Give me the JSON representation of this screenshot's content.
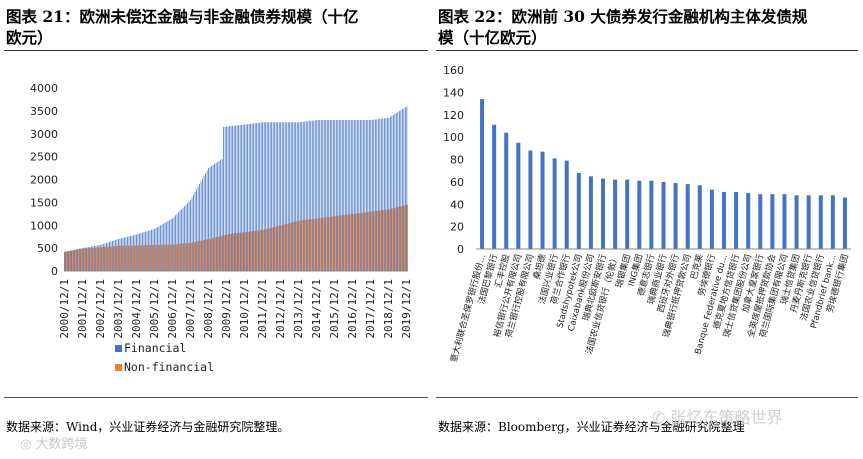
{
  "chart_data": [
    {
      "type": "bar",
      "title": "图表21：欧洲未偿还金融与非金融债券规模（十亿欧元）",
      "subtitle": "",
      "xlabel": "",
      "ylabel": "",
      "ylim": [
        0,
        4000
      ],
      "yticks": [
        "0",
        "500",
        "1000",
        "1500",
        "2000",
        "2500",
        "3000",
        "3500",
        "4000"
      ],
      "xticks": [
        "2000/12/1",
        "2001/12/1",
        "2002/12/1",
        "2003/12/1",
        "2004/12/1",
        "2005/12/1",
        "2006/12/1",
        "2007/12/1",
        "2008/12/1",
        "2009/12/1",
        "2010/12/1",
        "2011/12/1",
        "2012/12/1",
        "2013/12/1",
        "2014/12/1",
        "2015/12/1",
        "2016/12/1",
        "2017/12/1",
        "2018/12/1",
        "2019/12/1"
      ],
      "x_start": "2000-12",
      "frequency": "monthly",
      "stacked": false,
      "grid": false,
      "legend": "bottom",
      "series": [
        {
          "name": "Financial",
          "color": "#4472c4",
          "anchors": [
            [
              "2000-12",
              420
            ],
            [
              "2001-12",
              500
            ],
            [
              "2002-12",
              570
            ],
            [
              "2003-12",
              700
            ],
            [
              "2004-12",
              800
            ],
            [
              "2005-12",
              920
            ],
            [
              "2006-12",
              1150
            ],
            [
              "2007-12",
              1550
            ],
            [
              "2008-06",
              1900
            ],
            [
              "2008-12",
              2250
            ],
            [
              "2009-09",
              2450
            ],
            [
              "2009-10",
              3150
            ],
            [
              "2010-12",
              3200
            ],
            [
              "2011-12",
              3250
            ],
            [
              "2012-12",
              3250
            ],
            [
              "2013-12",
              3250
            ],
            [
              "2014-12",
              3300
            ],
            [
              "2015-12",
              3300
            ],
            [
              "2016-12",
              3300
            ],
            [
              "2017-12",
              3300
            ],
            [
              "2018-12",
              3350
            ],
            [
              "2019-12",
              3600
            ]
          ]
        },
        {
          "name": "Non-financial",
          "color": "#ed7d31",
          "anchors": [
            [
              "2000-12",
              420
            ],
            [
              "2001-12",
              490
            ],
            [
              "2002-12",
              520
            ],
            [
              "2003-12",
              550
            ],
            [
              "2004-12",
              560
            ],
            [
              "2005-12",
              570
            ],
            [
              "2006-12",
              580
            ],
            [
              "2007-12",
              620
            ],
            [
              "2008-12",
              700
            ],
            [
              "2009-12",
              800
            ],
            [
              "2010-12",
              850
            ],
            [
              "2011-12",
              900
            ],
            [
              "2012-12",
              1000
            ],
            [
              "2013-12",
              1100
            ],
            [
              "2014-12",
              1150
            ],
            [
              "2015-12",
              1200
            ],
            [
              "2016-12",
              1250
            ],
            [
              "2017-12",
              1300
            ],
            [
              "2018-12",
              1350
            ],
            [
              "2019-12",
              1450
            ]
          ]
        }
      ]
    },
    {
      "type": "bar",
      "title": "图表22：欧洲前30大债券发行金融机构主体发债规模（十亿欧元）",
      "subtitle": "",
      "xlabel": "",
      "ylabel": "",
      "ylim": [
        0,
        160
      ],
      "yticks": [
        "0",
        "20",
        "40",
        "60",
        "80",
        "100",
        "120",
        "140",
        "160"
      ],
      "grid": false,
      "legend": "none",
      "color": "#4472c4",
      "categories": [
        "意大利联合圣保罗银行股份…",
        "法国巴黎银行",
        "汇丰控股",
        "裕信银行公开有限公司",
        "荷兰银行控股有限公司",
        "桑坦德",
        "法国兴业银行",
        "荷兰合作银行",
        "Stadshypotek公司",
        "Caixabank股份公司",
        "瑞典北欧斯安银行",
        "法国农业信贷银行（伦敦）",
        "瑞银集团",
        "ING集团",
        "德意志银行",
        "瑞典商业银行",
        "西班牙对外银行",
        "瑞典银行抵押贷款公司",
        "巴克莱",
        "劳埃德银行",
        "Banque Federative du…",
        "德克夏地方信贷银行",
        "瑞士信贷集团股份公司",
        "加拿大皇家银行",
        "全英房屋抵押贷款协会",
        "荷兰国际集团有限公司",
        "瑞士信贷集团",
        "丹麦丹斯克银行",
        "法国农业信贷银行",
        "Pfandbrief bank…",
        "劳埃德银行集团"
      ],
      "values": [
        134,
        111,
        104,
        95,
        88,
        87,
        81,
        79,
        68,
        65,
        63,
        62,
        62,
        61,
        61,
        60,
        59,
        58,
        57,
        53,
        51,
        51,
        50,
        49,
        49,
        49,
        48,
        48,
        48,
        48,
        46
      ]
    }
  ],
  "left": {
    "title": "图表 21：欧洲未偿还金融与非金融债券规模（十亿\n欧元）",
    "source": "数据来源：Wind，兴业证券经济与金融研究院整理。",
    "watermark": "大数跨境"
  },
  "right": {
    "title": "图表 22：欧洲前 30 大债券发行金融机构主体发债规\n模（十亿欧元）",
    "source": "数据来源：Bloomberg，兴业证券经济与金融研究院整理",
    "watermark": "张忆东策略世界"
  }
}
